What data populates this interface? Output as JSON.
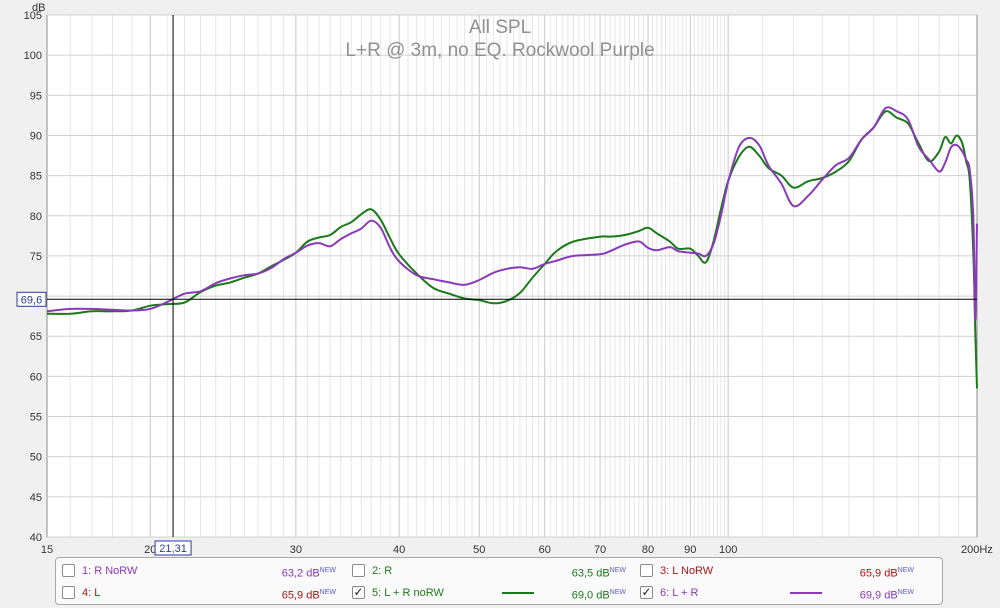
{
  "chart_data": {
    "type": "line",
    "title": "All SPL",
    "subtitle": "L+R @ 3m, no EQ.  Rockwool Purple",
    "ylabel": "dB",
    "xunit": "Hz",
    "xscale": "log",
    "xlim": [
      15,
      200
    ],
    "ylim": [
      40,
      105
    ],
    "grid": true,
    "x_ticks": [
      {
        "v": 15,
        "label": "15"
      },
      {
        "v": 20,
        "label": "20"
      },
      {
        "v": 30,
        "label": "30"
      },
      {
        "v": 40,
        "label": "40"
      },
      {
        "v": 50,
        "label": "50"
      },
      {
        "v": 60,
        "label": "60"
      },
      {
        "v": 70,
        "label": "70"
      },
      {
        "v": 80,
        "label": "80"
      },
      {
        "v": 90,
        "label": "90"
      },
      {
        "v": 100,
        "label": "100"
      },
      {
        "v": 200,
        "label": "200Hz"
      }
    ],
    "y_ticks": [
      "40",
      "45",
      "50",
      "55",
      "60",
      "65",
      "70",
      "75",
      "80",
      "85",
      "90",
      "95",
      "100",
      "105"
    ],
    "cursor": {
      "x": 21.31,
      "x_label": "21,31",
      "y": 69.6,
      "y_label": "69,6"
    },
    "series": [
      {
        "name": "5: L + R noRW",
        "color": "#1a7a1a",
        "points": [
          [
            15,
            67.8
          ],
          [
            16,
            67.8
          ],
          [
            17,
            68.1
          ],
          [
            18,
            68.1
          ],
          [
            19,
            68.2
          ],
          [
            20,
            68.8
          ],
          [
            21,
            69.0
          ],
          [
            22,
            69.2
          ],
          [
            23,
            70.5
          ],
          [
            24,
            71.3
          ],
          [
            25,
            71.7
          ],
          [
            26,
            72.3
          ],
          [
            27,
            72.8
          ],
          [
            28,
            73.7
          ],
          [
            29,
            74.5
          ],
          [
            30,
            75.4
          ],
          [
            31,
            76.8
          ],
          [
            32,
            77.3
          ],
          [
            33,
            77.6
          ],
          [
            34,
            78.6
          ],
          [
            35,
            79.2
          ],
          [
            36,
            80.2
          ],
          [
            37,
            80.8
          ],
          [
            38,
            79.5
          ],
          [
            39,
            77.2
          ],
          [
            40,
            75.2
          ],
          [
            42,
            72.8
          ],
          [
            44,
            71.0
          ],
          [
            46,
            70.3
          ],
          [
            48,
            69.7
          ],
          [
            50,
            69.5
          ],
          [
            52,
            69.1
          ],
          [
            54,
            69.4
          ],
          [
            56,
            70.4
          ],
          [
            58,
            72.3
          ],
          [
            60,
            74.0
          ],
          [
            62,
            75.6
          ],
          [
            65,
            76.8
          ],
          [
            70,
            77.4
          ],
          [
            72,
            77.4
          ],
          [
            75,
            77.6
          ],
          [
            78,
            78.1
          ],
          [
            80,
            78.5
          ],
          [
            82,
            77.8
          ],
          [
            85,
            76.8
          ],
          [
            87,
            75.9
          ],
          [
            90,
            75.9
          ],
          [
            92,
            75.0
          ],
          [
            94,
            74.2
          ],
          [
            96,
            76.8
          ],
          [
            98,
            80.8
          ],
          [
            100,
            84.3
          ],
          [
            103,
            87.3
          ],
          [
            106,
            88.6
          ],
          [
            109,
            87.5
          ],
          [
            112,
            85.9
          ],
          [
            116,
            85.0
          ],
          [
            120,
            83.5
          ],
          [
            125,
            84.3
          ],
          [
            130,
            84.7
          ],
          [
            135,
            85.5
          ],
          [
            140,
            86.8
          ],
          [
            145,
            89.5
          ],
          [
            150,
            91.0
          ],
          [
            155,
            93.0
          ],
          [
            160,
            92.2
          ],
          [
            165,
            91.5
          ],
          [
            170,
            89.0
          ],
          [
            175,
            86.8
          ],
          [
            180,
            88.0
          ],
          [
            183,
            89.8
          ],
          [
            186,
            89.0
          ],
          [
            189,
            90.0
          ],
          [
            192,
            89.0
          ],
          [
            194,
            86.8
          ],
          [
            196,
            84.5
          ],
          [
            198,
            75.0
          ],
          [
            199,
            66.0
          ],
          [
            200,
            58.5
          ]
        ]
      },
      {
        "name": "6: L + R",
        "color": "#8a3ab9",
        "points": [
          [
            15,
            68.1
          ],
          [
            16,
            68.4
          ],
          [
            17,
            68.4
          ],
          [
            18,
            68.3
          ],
          [
            19,
            68.2
          ],
          [
            20,
            68.4
          ],
          [
            21,
            69.3
          ],
          [
            22,
            70.3
          ],
          [
            23,
            70.6
          ],
          [
            24,
            71.6
          ],
          [
            25,
            72.2
          ],
          [
            26,
            72.6
          ],
          [
            27,
            72.8
          ],
          [
            28,
            73.5
          ],
          [
            29,
            74.6
          ],
          [
            30,
            75.4
          ],
          [
            31,
            76.3
          ],
          [
            32,
            76.6
          ],
          [
            33,
            76.2
          ],
          [
            34,
            77.1
          ],
          [
            35,
            77.8
          ],
          [
            36,
            78.4
          ],
          [
            37,
            79.4
          ],
          [
            38,
            78.5
          ],
          [
            39,
            76.0
          ],
          [
            40,
            74.3
          ],
          [
            42,
            72.6
          ],
          [
            44,
            72.1
          ],
          [
            46,
            71.7
          ],
          [
            48,
            71.4
          ],
          [
            50,
            72.0
          ],
          [
            52,
            72.9
          ],
          [
            54,
            73.4
          ],
          [
            56,
            73.6
          ],
          [
            58,
            73.4
          ],
          [
            60,
            74.0
          ],
          [
            62,
            74.4
          ],
          [
            65,
            75.0
          ],
          [
            70,
            75.2
          ],
          [
            72,
            75.6
          ],
          [
            75,
            76.4
          ],
          [
            78,
            76.8
          ],
          [
            80,
            76.0
          ],
          [
            82,
            75.7
          ],
          [
            85,
            76.1
          ],
          [
            87,
            75.6
          ],
          [
            90,
            75.4
          ],
          [
            92,
            75.3
          ],
          [
            94,
            75.0
          ],
          [
            96,
            76.5
          ],
          [
            98,
            80.0
          ],
          [
            100,
            84.2
          ],
          [
            103,
            88.5
          ],
          [
            106,
            89.7
          ],
          [
            109,
            88.8
          ],
          [
            112,
            86.2
          ],
          [
            116,
            84.0
          ],
          [
            120,
            81.2
          ],
          [
            125,
            82.5
          ],
          [
            130,
            84.5
          ],
          [
            135,
            86.3
          ],
          [
            140,
            87.2
          ],
          [
            145,
            89.5
          ],
          [
            150,
            91.0
          ],
          [
            155,
            93.4
          ],
          [
            160,
            93.0
          ],
          [
            165,
            92.0
          ],
          [
            170,
            88.6
          ],
          [
            175,
            87.0
          ],
          [
            180,
            85.5
          ],
          [
            183,
            86.6
          ],
          [
            186,
            88.5
          ],
          [
            189,
            88.8
          ],
          [
            192,
            88.0
          ],
          [
            194,
            87.0
          ],
          [
            196,
            85.7
          ],
          [
            198,
            79.5
          ],
          [
            199,
            67.0
          ],
          [
            200,
            79.0
          ]
        ]
      }
    ]
  },
  "legend": [
    {
      "label": "1: R NoRW",
      "value": "63,2 dB",
      "new": "NEW",
      "checked": false,
      "label_color": "#8a3ab9",
      "value_color": "#8a3ab9"
    },
    {
      "label": "2: R",
      "value": "63,5 dB",
      "new": "NEW",
      "checked": false,
      "label_color": "#1a7a1a",
      "value_color": "#1a7a1a"
    },
    {
      "label": "3: L NoRW",
      "value": "65,9 dB",
      "new": "NEW",
      "checked": false,
      "label_color": "#b01515",
      "value_color": "#b01515"
    },
    {
      "label": "4: L",
      "value": "65,9 dB",
      "new": "NEW",
      "checked": false,
      "label_color": "#b01515",
      "value_color": "#b01515"
    },
    {
      "label": "5: L + R noRW",
      "value": "69,0 dB",
      "new": "NEW",
      "checked": true,
      "label_color": "#1a7a1a",
      "value_color": "#1a7a1a",
      "swatch": "#1a7a1a"
    },
    {
      "label": "6: L + R",
      "value": "69,9 dB",
      "new": "NEW",
      "checked": true,
      "label_color": "#8a3ab9",
      "value_color": "#8a3ab9",
      "swatch": "#8a3ab9"
    }
  ]
}
